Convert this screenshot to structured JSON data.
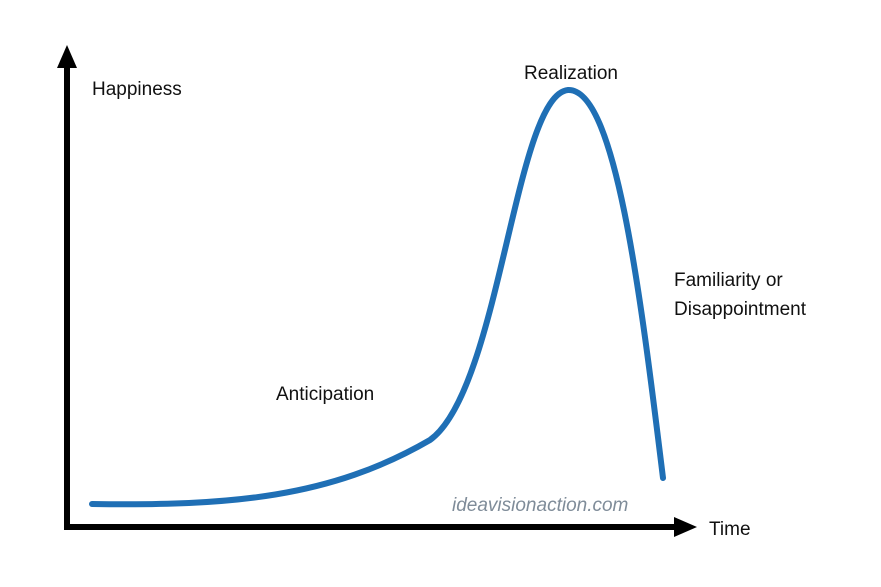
{
  "labels": {
    "y_axis": "Happiness",
    "x_axis": "Time",
    "phase_anticipation": "Anticipation",
    "phase_realization": "Realization",
    "phase_familiarity_line1": "Familiarity or",
    "phase_familiarity_line2": "Disappointment"
  },
  "watermark": "ideavisionaction.com",
  "colors": {
    "curve": "#1f6fb5",
    "axis": "#000000",
    "text": "#111111",
    "watermark": "#7f8c99"
  }
}
